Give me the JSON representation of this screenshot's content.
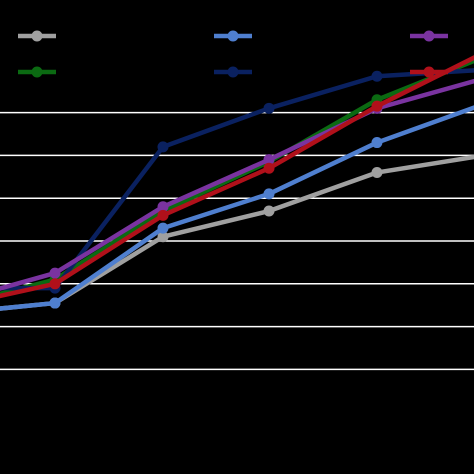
{
  "chart_data": {
    "type": "line",
    "x": [
      1,
      2,
      3,
      4,
      5,
      6
    ],
    "ylim": [
      0,
      10
    ],
    "grid": true,
    "legend_position": "top",
    "background": "#000000",
    "gridline_color": "#ffffff",
    "series": [
      {
        "color": "#a0a0a0",
        "values": [
          3.3,
          3.55,
          5.1,
          5.7,
          6.6,
          7.0
        ]
      },
      {
        "color": "#0b6a12",
        "values": [
          3.45,
          4.1,
          5.7,
          6.85,
          8.3,
          9.3
        ]
      },
      {
        "color": "#4f7fcf",
        "values": [
          3.3,
          3.55,
          5.3,
          6.1,
          7.3,
          8.2
        ]
      },
      {
        "color": "#0a2160",
        "values": [
          3.9,
          3.9,
          7.2,
          8.1,
          8.85,
          9.0
        ]
      },
      {
        "color": "#7a33a0",
        "values": [
          3.55,
          4.25,
          5.8,
          6.9,
          8.1,
          8.8
        ]
      },
      {
        "color": "#b0101a",
        "values": [
          3.45,
          4.0,
          5.6,
          6.7,
          8.15,
          9.4
        ]
      }
    ]
  }
}
